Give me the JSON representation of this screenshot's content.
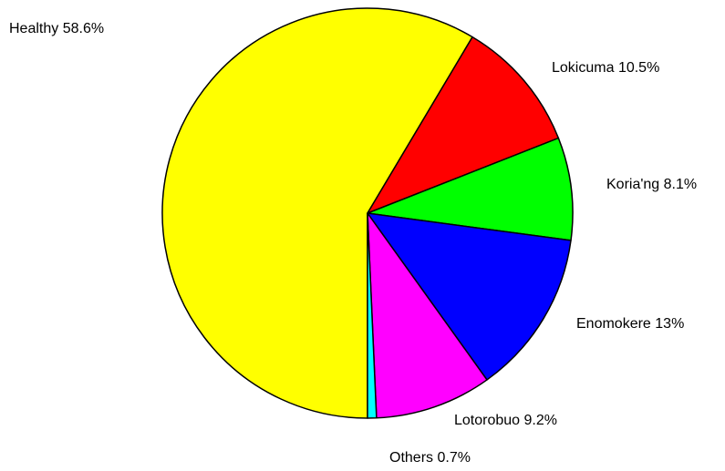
{
  "chart_data": {
    "type": "pie",
    "categories": [
      "Healthy",
      "Lokicuma",
      "Koria'ng",
      "Enomokere",
      "Lotorobuo",
      "Others"
    ],
    "values": [
      58.6,
      10.5,
      8.1,
      13,
      9.2,
      0.7
    ],
    "value_labels": [
      "58.6%",
      "10.5%",
      "8.1%",
      "13%",
      "9.2%",
      "0.7%"
    ],
    "colors": [
      "#ffff00",
      "#ff0000",
      "#00ff00",
      "#0000ff",
      "#ff00ff",
      "#00ffff"
    ]
  }
}
